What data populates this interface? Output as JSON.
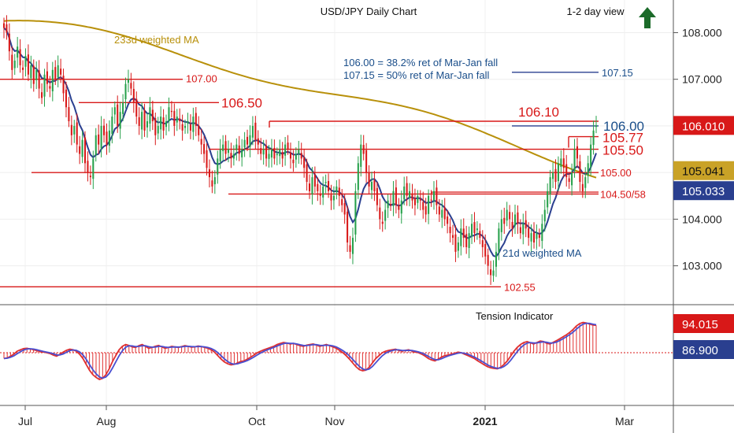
{
  "header": {
    "title": "USD/JPY Daily Chart",
    "view": "1-2 day view",
    "direction_icon": "up-arrow-icon"
  },
  "colors": {
    "up_candle": "#26a04a",
    "down_candle": "#d81818",
    "level_line": "#d81818",
    "ma_long": "#b8900a",
    "ma_short": "#2a3f8f",
    "tension_red": "#e03030",
    "tension_blue": "#4a4fd0",
    "arrow": "#1c6b2a"
  },
  "chart_data": [
    {
      "type": "candlestick",
      "title": "USD/JPY Daily Chart",
      "x_ticks": [
        "Jul",
        "Aug",
        "Oct",
        "Nov",
        "2021",
        "Mar"
      ],
      "y_ticks": [
        "103.000",
        "104.000",
        "105.000",
        "106.000",
        "107.000",
        "108.000"
      ],
      "ylim": [
        102.2,
        108.7
      ],
      "levels": [
        {
          "label": "107.00",
          "value": 107.0
        },
        {
          "label": "106.50",
          "value": 106.5
        },
        {
          "label": "106.10",
          "value": 106.1
        },
        {
          "label": "105.77",
          "value": 105.77
        },
        {
          "label": "105.50",
          "value": 105.5
        },
        {
          "label": "105.00",
          "value": 105.0
        },
        {
          "label": "104.50/58",
          "value": 104.54
        },
        {
          "label": "102.55",
          "value": 102.55
        }
      ],
      "targets": [
        {
          "label": "106.00",
          "value": 106.0
        },
        {
          "label": "107.15",
          "value": 107.15
        }
      ],
      "annotations": [
        "106.00 = 38.2% ret of Mar-Jan fall",
        "107.15 = 50% ret of Mar-Jan fall"
      ],
      "moving_averages": [
        {
          "name": "233d weighted MA",
          "last": 105.041
        },
        {
          "name": "21d weighted MA",
          "last": 105.033
        }
      ],
      "last_price": 106.01,
      "price_tags": [
        {
          "label": "106.010",
          "color": "#d81818"
        },
        {
          "label": "105.041",
          "color": "#c9a227"
        },
        {
          "label": "105.033",
          "color": "#2a3f8f"
        }
      ],
      "closes": [
        108.1,
        108.0,
        107.6,
        107.2,
        107.4,
        107.7,
        107.3,
        107.2,
        107.5,
        107.1,
        107.3,
        106.9,
        107.2,
        106.8,
        106.6,
        107.1,
        106.9,
        106.8,
        107.2,
        107.0,
        107.3,
        107.1,
        106.7,
        106.4,
        106.1,
        105.8,
        106.0,
        105.6,
        105.4,
        105.7,
        105.2,
        105.0,
        104.9,
        105.3,
        105.8,
        105.6,
        106.0,
        105.8,
        105.6,
        105.9,
        106.2,
        106.4,
        106.0,
        106.3,
        106.5,
        106.9,
        107.0,
        106.8,
        106.5,
        106.2,
        106.0,
        106.3,
        105.9,
        106.1,
        106.4,
        106.1,
        105.8,
        106.0,
        106.2,
        105.9,
        106.1,
        106.4,
        106.3,
        106.0,
        106.2,
        106.1,
        105.9,
        106.0,
        106.1,
        105.9,
        106.2,
        106.0,
        105.8,
        105.6,
        105.4,
        105.1,
        104.9,
        104.7,
        104.9,
        105.3,
        105.5,
        105.6,
        105.4,
        105.5,
        105.3,
        105.4,
        105.6,
        105.4,
        105.5,
        105.7,
        105.6,
        105.8,
        106.0,
        105.7,
        105.6,
        105.4,
        105.5,
        105.3,
        105.4,
        105.5,
        105.3,
        105.4,
        105.5,
        105.3,
        105.6,
        105.5,
        105.3,
        105.2,
        105.4,
        105.5,
        105.3,
        105.1,
        104.8,
        104.6,
        104.9,
        104.7,
        104.6,
        104.5,
        104.7,
        104.8,
        104.6,
        104.4,
        104.5,
        104.7,
        104.5,
        104.3,
        104.1,
        103.5,
        103.3,
        103.6,
        104.6,
        105.2,
        105.6,
        105.4,
        105.0,
        104.7,
        104.8,
        104.6,
        104.3,
        104.0,
        103.9,
        104.2,
        104.4,
        104.3,
        104.6,
        104.3,
        104.2,
        104.4,
        104.7,
        104.5,
        104.6,
        104.4,
        104.3,
        104.5,
        104.4,
        104.2,
        104.1,
        104.5,
        104.4,
        104.6,
        104.3,
        104.1,
        104.2,
        104.0,
        103.9,
        103.7,
        103.6,
        103.3,
        103.5,
        103.8,
        103.6,
        103.4,
        103.7,
        103.9,
        103.7,
        103.8,
        103.6,
        103.4,
        103.2,
        103.0,
        102.8,
        102.9,
        103.3,
        103.8,
        104.0,
        103.9,
        104.2,
        104.0,
        103.8,
        104.1,
        103.9,
        103.7,
        103.9,
        103.8,
        103.6,
        103.7,
        103.5,
        103.7,
        103.6,
        103.9,
        104.2,
        104.6,
        104.9,
        105.0,
        104.8,
        105.2,
        105.3,
        105.1,
        104.9,
        104.8,
        105.0,
        105.5,
        105.3,
        104.8,
        104.6,
        104.9,
        105.2,
        105.6,
        105.9,
        106.01
      ]
    },
    {
      "type": "line",
      "title": "Tension Indicator",
      "y_tags": [
        {
          "label": "94.015",
          "color": "#d81818"
        },
        {
          "label": "86.900",
          "color": "#2a3f8f"
        }
      ],
      "main": [
        -20,
        -18,
        -12,
        -5,
        5,
        10,
        14,
        15,
        13,
        10,
        7,
        4,
        2,
        0,
        -3,
        -8,
        -12,
        -6,
        2,
        8,
        12,
        10,
        5,
        -5,
        -20,
        -40,
        -60,
        -75,
        -85,
        -92,
        -88,
        -75,
        -55,
        -30,
        -10,
        10,
        22,
        28,
        25,
        20,
        18,
        24,
        28,
        22,
        15,
        18,
        22,
        25,
        20,
        15,
        18,
        22,
        20,
        18,
        21,
        24,
        22,
        19,
        20,
        23,
        21,
        18,
        15,
        10,
        2,
        -10,
        -22,
        -32,
        -38,
        -42,
        -40,
        -35,
        -30,
        -28,
        -22,
        -15,
        -8,
        0,
        5,
        10,
        14,
        18,
        22,
        28,
        32,
        35,
        33,
        30,
        32,
        28,
        24,
        22,
        26,
        28,
        30,
        26,
        22,
        25,
        28,
        24,
        20,
        15,
        8,
        0,
        -10,
        -22,
        -35,
        -48,
        -58,
        -62,
        -60,
        -50,
        -35,
        -20,
        -10,
        0,
        5,
        8,
        10,
        12,
        8,
        5,
        8,
        10,
        6,
        2,
        0,
        -5,
        -12,
        -20,
        -25,
        -28,
        -22,
        -15,
        -10,
        -8,
        -5,
        -2,
        2,
        0,
        -5,
        -10,
        -15,
        -20,
        -28,
        -35,
        -42,
        -48,
        -52,
        -54,
        -55,
        -50,
        -40,
        -28,
        -12,
        5,
        18,
        28,
        35,
        38,
        34,
        30,
        35,
        40,
        38,
        32,
        30,
        36,
        42,
        48,
        55,
        62,
        70,
        80,
        92,
        100,
        104,
        102,
        98,
        95,
        94
      ]
    }
  ]
}
